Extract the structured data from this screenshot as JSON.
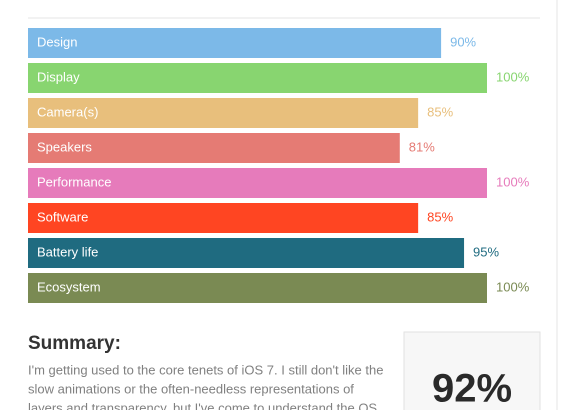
{
  "chart_data": {
    "type": "bar",
    "orientation": "horizontal",
    "categories": [
      "Design",
      "Display",
      "Camera(s)",
      "Speakers",
      "Performance",
      "Software",
      "Battery life",
      "Ecosystem"
    ],
    "values": [
      90,
      100,
      85,
      81,
      100,
      85,
      95,
      100
    ],
    "value_labels": [
      "90%",
      "100%",
      "85%",
      "81%",
      "100%",
      "85%",
      "95%",
      "100%"
    ],
    "colors": [
      "#7cb9e8",
      "#88d570",
      "#e8bf7c",
      "#e57b74",
      "#e67bbb",
      "#ff4522",
      "#1f6b80",
      "#7a8a53"
    ],
    "xlim": [
      0,
      100
    ]
  },
  "summary": {
    "title": "Summary:",
    "lines": [
      "I'm getting used to the core tenets of iOS 7. I still don't like the",
      "slow animations or the often-needless representations of",
      "layers and transparency, but I've come to understand the OS"
    ]
  },
  "score": "92%"
}
